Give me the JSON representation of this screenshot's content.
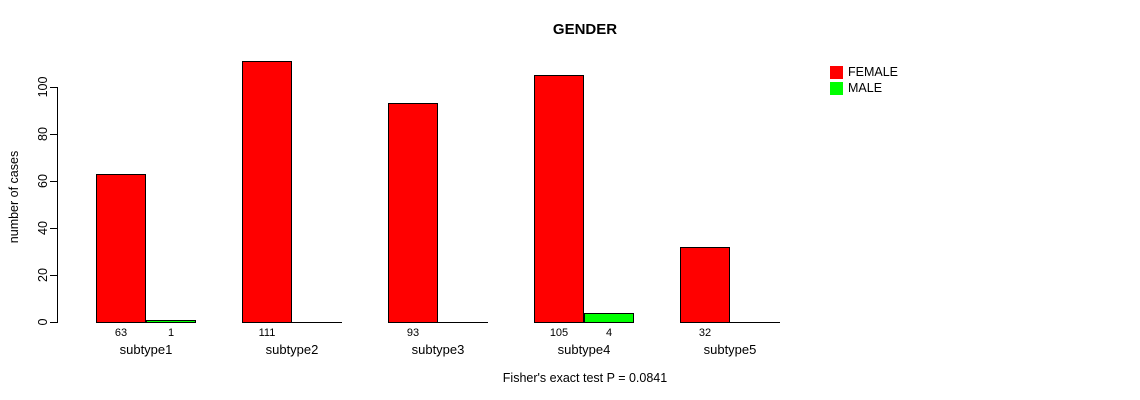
{
  "title": "GENDER",
  "footer": "Fisher's exact test P = 0.0841",
  "y_axis": {
    "label": "number of cases"
  },
  "legend": {
    "items": [
      {
        "label": "FEMALE",
        "color": "#ff0000"
      },
      {
        "label": "MALE",
        "color": "#00ff00"
      }
    ]
  },
  "chart_data": {
    "type": "bar",
    "title": "GENDER",
    "xlabel": "",
    "ylabel": "number of cases",
    "categories": [
      "subtype1",
      "subtype2",
      "subtype3",
      "subtype4",
      "subtype5"
    ],
    "series": [
      {
        "name": "FEMALE",
        "color": "#ff0000",
        "values": [
          63,
          111,
          93,
          105,
          32
        ]
      },
      {
        "name": "MALE",
        "color": "#00ff00",
        "values": [
          1,
          0,
          0,
          4,
          0
        ]
      }
    ],
    "ylim": [
      0,
      100
    ],
    "yticks": [
      0,
      20,
      40,
      60,
      80,
      100
    ],
    "grid": false,
    "legend_position": "right",
    "bar_value_labels": "counts shown under each bar; zero values unlabeled",
    "annotation": "Fisher's exact test P = 0.0841"
  }
}
